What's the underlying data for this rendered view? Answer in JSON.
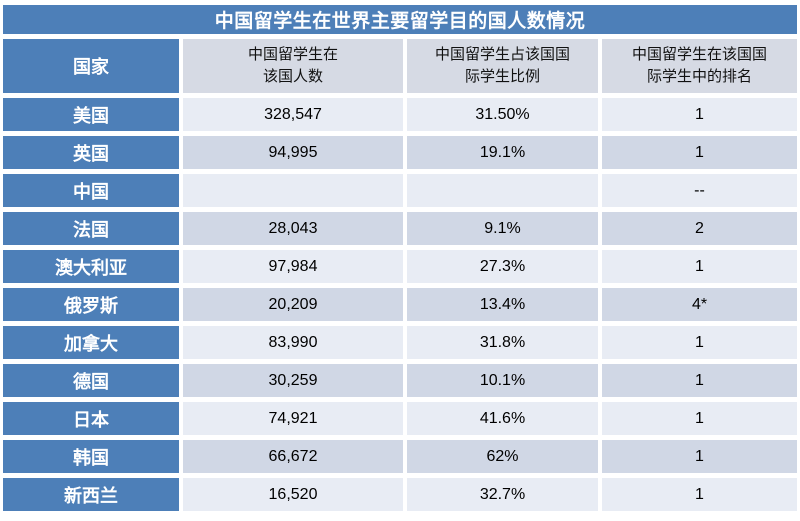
{
  "chart_data": {
    "type": "table",
    "title": "中国留学生在世界主要留学目的国人数情况",
    "columns": [
      "国家",
      "中国留学生在\n该国人数",
      "中国留学生占该国国\n际学生比例",
      "中国留学生在该国国\n际学生中的排名"
    ],
    "rows": [
      {
        "country": "美国",
        "count": "328,547",
        "share": "31.50%",
        "rank": "1"
      },
      {
        "country": "英国",
        "count": "94,995",
        "share": "19.1%",
        "rank": "1"
      },
      {
        "country": "中国",
        "count": "",
        "share": "",
        "rank": "--"
      },
      {
        "country": "法国",
        "count": "28,043",
        "share": "9.1%",
        "rank": "2"
      },
      {
        "country": "澳大利亚",
        "count": "97,984",
        "share": "27.3%",
        "rank": "1"
      },
      {
        "country": "俄罗斯",
        "count": "20,209",
        "share": "13.4%",
        "rank": "4*"
      },
      {
        "country": "加拿大",
        "count": "83,990",
        "share": "31.8%",
        "rank": "1"
      },
      {
        "country": "德国",
        "count": "30,259",
        "share": "10.1%",
        "rank": "1"
      },
      {
        "country": "日本",
        "count": "74,921",
        "share": "41.6%",
        "rank": "1"
      },
      {
        "country": "韩国",
        "count": "66,672",
        "share": "62%",
        "rank": "1"
      },
      {
        "country": "新西兰",
        "count": "16,520",
        "share": "32.7%",
        "rank": "1"
      }
    ]
  },
  "colors": {
    "accent_blue": "#4d7fb8",
    "row_light": "#e8ecf4",
    "row_shaded": "#d0d7e5",
    "header_light": "#d6dae4",
    "gap_white": "#ffffff",
    "title_text": "#ffffff",
    "body_text": "#000000"
  }
}
